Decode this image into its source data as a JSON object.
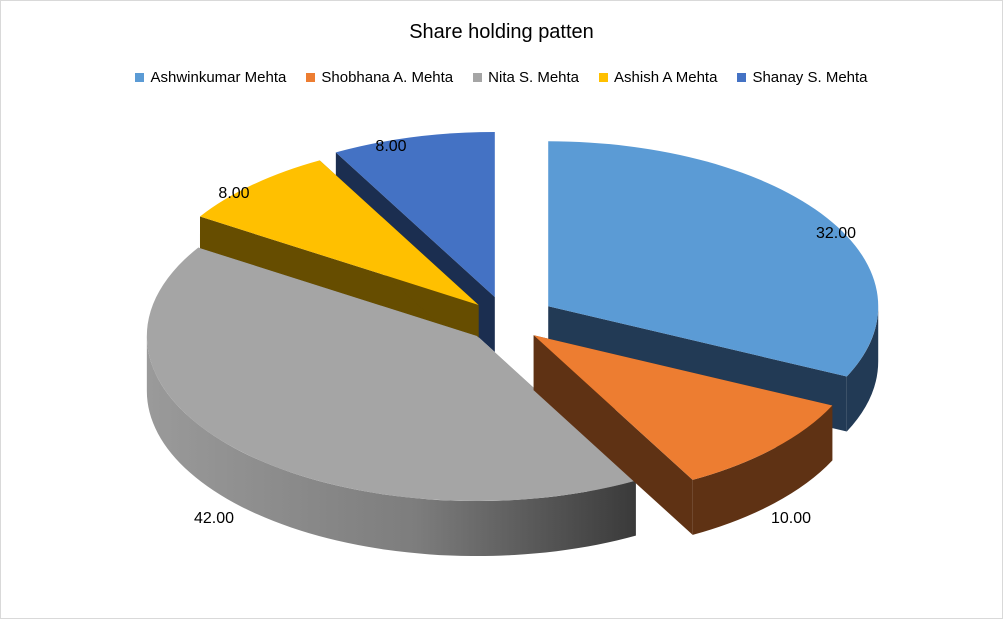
{
  "chart_data": {
    "type": "pie",
    "title": "Share holding patten",
    "slices": [
      {
        "label": "Ashwinkumar  Mehta",
        "value": 32.0,
        "value_label": "32.00",
        "color": "#5B9BD5",
        "side_color": "#223A55"
      },
      {
        "label": "Shobhana A.  Mehta",
        "value": 10.0,
        "value_label": "10.00",
        "color": "#ED7D31",
        "side_color": "#5F3214"
      },
      {
        "label": "Nita S.  Mehta",
        "value": 42.0,
        "value_label": "42.00",
        "color": "#A5A5A5",
        "side_color": "#7A7A7A"
      },
      {
        "label": "Ashish  A  Mehta",
        "value": 8.0,
        "value_label": "8.00",
        "color": "#FFC000",
        "side_color": "#664D00"
      },
      {
        "label": "Shanay  S.  Mehta",
        "value": 8.0,
        "value_label": "8.00",
        "color": "#4472C4",
        "side_color": "#1B2E50"
      }
    ],
    "legend_position": "top",
    "style": "exploded-3d-pie"
  }
}
